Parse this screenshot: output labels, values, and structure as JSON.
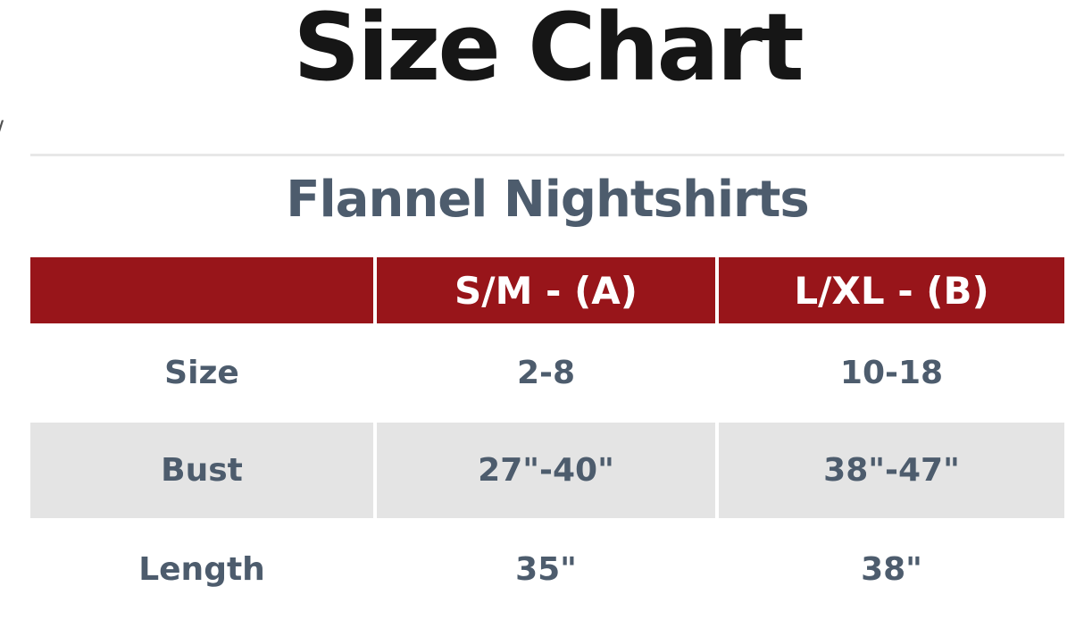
{
  "page": {
    "stray_mark": "/"
  },
  "colors": {
    "header_bg": "#98151a",
    "header_text": "#ffffff",
    "alt_row_bg": "#e4e4e4",
    "body_text": "#4d5c6d",
    "title_text": "#161616",
    "divider": "#e8e8e8"
  },
  "chart_data": {
    "type": "table",
    "title": "Size Chart",
    "subtitle": "Flannel Nightshirts",
    "columns": [
      "",
      "S/M - (A)",
      "L/XL - (B)"
    ],
    "rows": [
      {
        "label": "Size",
        "values": [
          "2-8",
          "10-18"
        ]
      },
      {
        "label": "Bust",
        "values": [
          "27\"-40\"",
          "38\"-47\""
        ]
      },
      {
        "label": "Length",
        "values": [
          "35\"",
          "38\""
        ]
      }
    ]
  }
}
